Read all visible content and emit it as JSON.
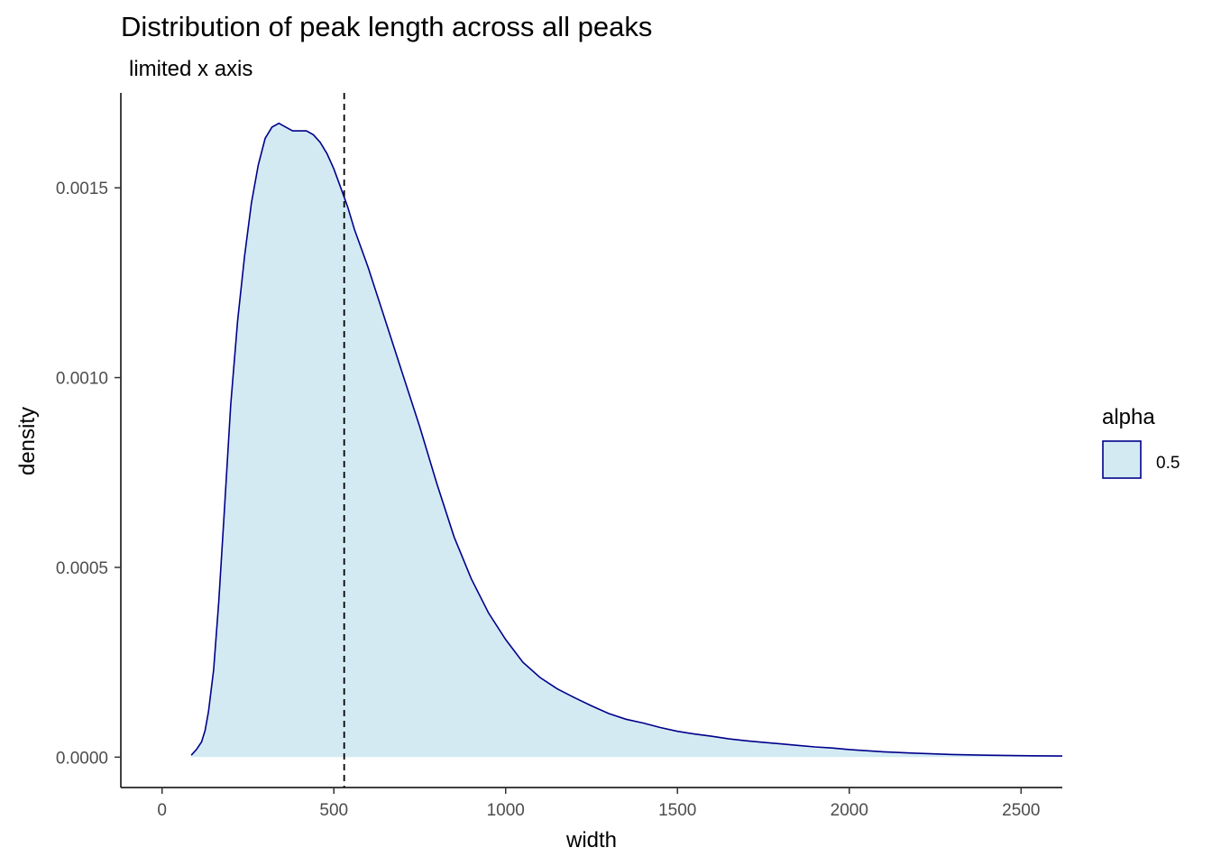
{
  "chart_data": {
    "type": "area",
    "title": "Distribution of peak length across all peaks",
    "subtitle": "limited x axis",
    "xlabel": "width",
    "ylabel": "density",
    "xlim": [
      -120,
      2620
    ],
    "ylim": [
      -8e-05,
      0.00175
    ],
    "x_ticks": [
      0,
      500,
      1000,
      1500,
      2000,
      2500
    ],
    "x_tick_labels": [
      "0",
      "500",
      "1000",
      "1500",
      "2000",
      "2500"
    ],
    "y_ticks": [
      0,
      0.0005,
      0.001,
      0.0015
    ],
    "y_tick_labels": [
      "0.0000",
      "0.0005",
      "0.0010",
      "0.0015"
    ],
    "grid": false,
    "vline": {
      "x": 530,
      "style": "dashed",
      "color": "#000000"
    },
    "fill_color": "#d3eaf3",
    "line_color": "#00008b",
    "series": [
      {
        "x": [
          85,
          100,
          115,
          125,
          135,
          150,
          165,
          180,
          200,
          220,
          240,
          260,
          280,
          300,
          320,
          340,
          360,
          380,
          400,
          420,
          440,
          460,
          480,
          500,
          520,
          540,
          560,
          580,
          600,
          650,
          700,
          750,
          800,
          850,
          900,
          950,
          1000,
          1050,
          1100,
          1150,
          1200,
          1250,
          1300,
          1350,
          1400,
          1450,
          1500,
          1550,
          1600,
          1650,
          1700,
          1750,
          1800,
          1850,
          1900,
          1950,
          2000,
          2050,
          2100,
          2200,
          2300,
          2400,
          2500,
          2620
        ],
        "values": [
          5e-06,
          2e-05,
          4e-05,
          7e-05,
          0.00012,
          0.00023,
          0.00041,
          0.00063,
          0.00093,
          0.00115,
          0.00132,
          0.00146,
          0.00156,
          0.00163,
          0.00166,
          0.00167,
          0.00166,
          0.00165,
          0.00165,
          0.00165,
          0.00164,
          0.00162,
          0.00159,
          0.00155,
          0.0015,
          0.00145,
          0.00139,
          0.00134,
          0.00129,
          0.00115,
          0.00101,
          0.00087,
          0.00072,
          0.00058,
          0.00047,
          0.00038,
          0.00031,
          0.00025,
          0.00021,
          0.00018,
          0.000157,
          0.000135,
          0.000115,
          0.0001,
          9e-05,
          7.8e-05,
          6.8e-05,
          6.1e-05,
          5.5e-05,
          4.8e-05,
          4.3e-05,
          3.9e-05,
          3.5e-05,
          3.1e-05,
          2.7e-05,
          2.4e-05,
          2e-05,
          1.7e-05,
          1.4e-05,
          1e-05,
          7e-06,
          5e-06,
          4e-06,
          3e-06
        ]
      }
    ],
    "legend": {
      "title": "alpha",
      "label": "0.5",
      "position": "right"
    }
  }
}
